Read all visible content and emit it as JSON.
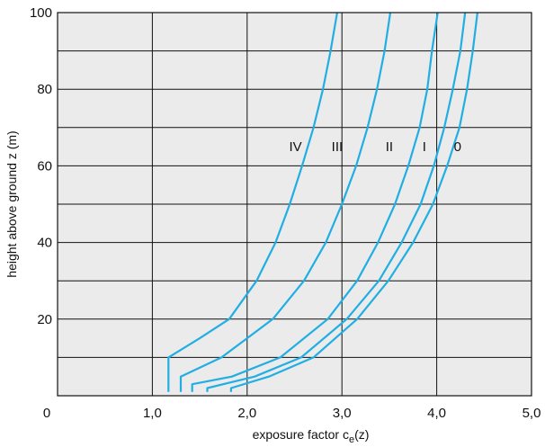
{
  "chart_data": {
    "type": "line",
    "xlabel": "exposure factor c",
    "xlabel_sub": "e",
    "xlabel_tail": "(z)",
    "ylabel": "height above ground z (m)",
    "xlim": [
      0,
      5
    ],
    "ylim": [
      0,
      100
    ],
    "x_ticks": [
      {
        "value": 0,
        "label": "0"
      },
      {
        "value": 1,
        "label": "1,0"
      },
      {
        "value": 2,
        "label": "2,0"
      },
      {
        "value": 3,
        "label": "3,0"
      },
      {
        "value": 4,
        "label": "4,0"
      },
      {
        "value": 5,
        "label": "5,0"
      }
    ],
    "y_ticks": [
      {
        "value": 20,
        "label": "20"
      },
      {
        "value": 40,
        "label": "40"
      },
      {
        "value": 60,
        "label": "60"
      },
      {
        "value": 80,
        "label": "80"
      },
      {
        "value": 100,
        "label": "100"
      }
    ],
    "grid": true,
    "colors": {
      "background": "#ebebeb",
      "curve": "#21aee3",
      "grid": "#111111"
    },
    "series": [
      {
        "name": "0",
        "points": [
          [
            1.83,
            1
          ],
          [
            1.83,
            2
          ],
          [
            2.23,
            5
          ],
          [
            2.7,
            10
          ],
          [
            3.16,
            20
          ],
          [
            3.49,
            30
          ],
          [
            3.75,
            40
          ],
          [
            3.96,
            50
          ],
          [
            4.11,
            60
          ],
          [
            4.24,
            70
          ],
          [
            4.32,
            80
          ],
          [
            4.38,
            90
          ],
          [
            4.43,
            100
          ]
        ]
      },
      {
        "name": "I",
        "points": [
          [
            1.58,
            1
          ],
          [
            1.58,
            2
          ],
          [
            2.08,
            5
          ],
          [
            2.57,
            10
          ],
          [
            3.05,
            20
          ],
          [
            3.39,
            30
          ],
          [
            3.63,
            40
          ],
          [
            3.83,
            50
          ],
          [
            3.97,
            60
          ],
          [
            4.08,
            70
          ],
          [
            4.17,
            80
          ],
          [
            4.25,
            90
          ],
          [
            4.3,
            100
          ]
        ]
      },
      {
        "name": "II",
        "points": [
          [
            1.42,
            1
          ],
          [
            1.42,
            3
          ],
          [
            1.84,
            5
          ],
          [
            2.35,
            10
          ],
          [
            2.85,
            20
          ],
          [
            3.16,
            30
          ],
          [
            3.38,
            40
          ],
          [
            3.56,
            50
          ],
          [
            3.7,
            60
          ],
          [
            3.82,
            70
          ],
          [
            3.9,
            80
          ],
          [
            3.95,
            90
          ],
          [
            4.01,
            100
          ]
        ]
      },
      {
        "name": "III",
        "points": [
          [
            1.3,
            1
          ],
          [
            1.3,
            5
          ],
          [
            1.73,
            10
          ],
          [
            2.27,
            20
          ],
          [
            2.6,
            30
          ],
          [
            2.83,
            40
          ],
          [
            3.0,
            50
          ],
          [
            3.15,
            60
          ],
          [
            3.27,
            70
          ],
          [
            3.37,
            80
          ],
          [
            3.45,
            90
          ],
          [
            3.51,
            100
          ]
        ]
      },
      {
        "name": "IV",
        "points": [
          [
            1.17,
            1
          ],
          [
            1.17,
            10
          ],
          [
            1.5,
            15
          ],
          [
            1.81,
            20
          ],
          [
            2.1,
            30
          ],
          [
            2.3,
            40
          ],
          [
            2.45,
            50
          ],
          [
            2.58,
            60
          ],
          [
            2.7,
            70
          ],
          [
            2.8,
            80
          ],
          [
            2.88,
            90
          ],
          [
            2.95,
            100
          ]
        ]
      }
    ],
    "curve_labels": [
      {
        "text": "IV",
        "x": 2.51,
        "y": 65
      },
      {
        "text": "III",
        "x": 2.95,
        "y": 65
      },
      {
        "text": "II",
        "x": 3.5,
        "y": 65
      },
      {
        "text": "I",
        "x": 3.87,
        "y": 65
      },
      {
        "text": "0",
        "x": 4.22,
        "y": 65
      }
    ]
  }
}
